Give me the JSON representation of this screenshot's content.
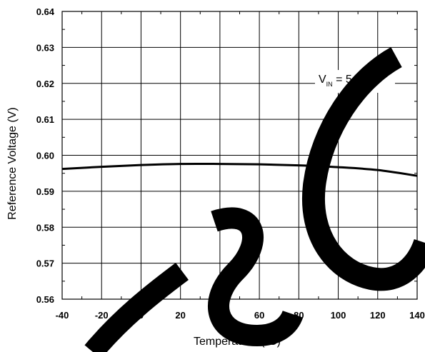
{
  "chart_data": {
    "type": "line",
    "xlabel": "Temperature (°C)",
    "xlabel_parts": {
      "prefix": "Temperature (",
      "sup": "o",
      "suffix": "C)"
    },
    "ylabel": "Reference Voltage (V)",
    "xlim": [
      -40,
      140
    ],
    "ylim": [
      0.56,
      0.64
    ],
    "x_ticks": [
      -40,
      -20,
      0,
      20,
      40,
      60,
      80,
      100,
      120,
      140
    ],
    "x_tick_labels": [
      "-40",
      "-20",
      "0",
      "20",
      "40",
      "60",
      "80",
      "100",
      "120",
      "140"
    ],
    "y_ticks": [
      0.56,
      0.57,
      0.58,
      0.59,
      0.6,
      0.61,
      0.62,
      0.63,
      0.64
    ],
    "y_tick_labels": [
      "0.56",
      "0.57",
      "0.58",
      "0.59",
      "0.60",
      "0.61",
      "0.62",
      "0.63",
      "0.64"
    ],
    "grid": true,
    "annotation": {
      "prefix": "V",
      "sub": "IN",
      "suffix": " = 5.0V"
    },
    "series": [
      {
        "x": [
          -40,
          -20,
          0,
          20,
          40,
          60,
          80,
          100,
          120,
          140
        ],
        "y": [
          0.5962,
          0.5968,
          0.5973,
          0.5976,
          0.5976,
          0.5975,
          0.5972,
          0.5967,
          0.5959,
          0.5943
        ]
      }
    ],
    "colors": {
      "line": "#000000",
      "grid": "#000000",
      "watermark": "#000000"
    }
  }
}
